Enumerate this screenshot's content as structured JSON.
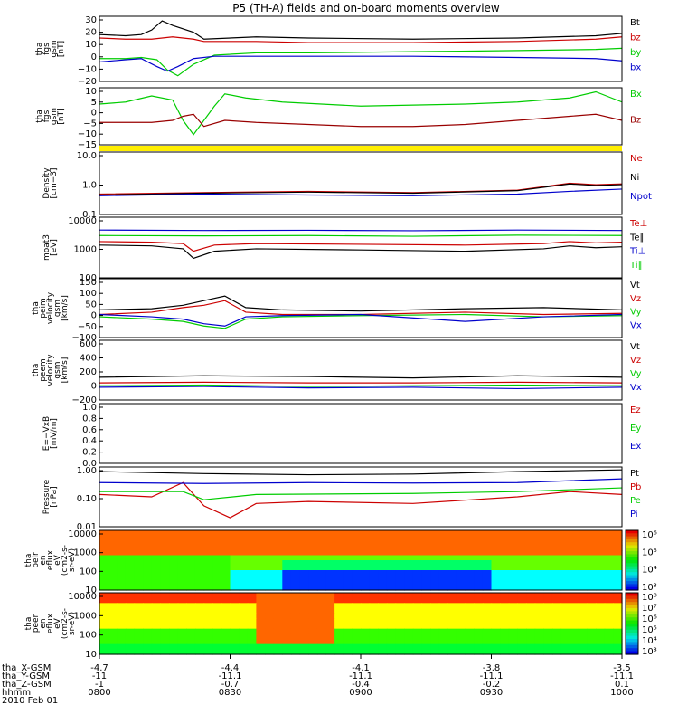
{
  "title": "P5 (TH-A) fields and on-board moments overview",
  "colors": {
    "black": "#000000",
    "red": "#cc0000",
    "green": "#00cc00",
    "blue": "#0000cc",
    "yellow": "#ffee00",
    "darkred": "#990000"
  },
  "chart_data": [
    {
      "id": "fgs_gsm",
      "type": "line",
      "ylabel": [
        "tha",
        "fgs",
        "gsm",
        "[nT]"
      ],
      "yticks": [
        "30",
        "20",
        "10",
        "0",
        "−10",
        "−20"
      ],
      "ylim": [
        -25,
        32
      ],
      "series": [
        {
          "name": "Bt",
          "color": "black",
          "x": [
            0,
            5,
            8,
            10,
            12,
            14,
            18,
            20,
            30,
            40,
            60,
            80,
            95,
            100
          ],
          "y": [
            16,
            15,
            16,
            20,
            28,
            24,
            18,
            12,
            14,
            13,
            12,
            13,
            15,
            17
          ]
        },
        {
          "name": "bz",
          "color": "red",
          "x": [
            0,
            5,
            10,
            14,
            18,
            20,
            30,
            40,
            60,
            80,
            95,
            100
          ],
          "y": [
            13,
            12,
            12,
            14,
            12,
            10,
            10,
            9,
            9,
            10,
            12,
            14
          ]
        },
        {
          "name": "by",
          "color": "green",
          "x": [
            0,
            5,
            8,
            11,
            13,
            15,
            18,
            22,
            30,
            40,
            60,
            80,
            95,
            100
          ],
          "y": [
            -5,
            -5,
            -4,
            -6,
            -15,
            -20,
            -10,
            -2,
            0,
            0,
            1,
            2,
            3,
            4
          ]
        },
        {
          "name": "bx",
          "color": "blue",
          "x": [
            0,
            5,
            8,
            11,
            13,
            15,
            18,
            22,
            30,
            40,
            60,
            80,
            95,
            100
          ],
          "y": [
            -8,
            -6,
            -5,
            -12,
            -16,
            -12,
            -5,
            -3,
            -3,
            -3,
            -3,
            -4,
            -5,
            -7
          ]
        }
      ]
    },
    {
      "id": "fgs_gsm2",
      "type": "line",
      "ylabel": [
        "tha",
        "fgs",
        "gsm",
        "[nT]"
      ],
      "yticks": [
        "10",
        "5",
        "0",
        "−5",
        "−10",
        "−15"
      ],
      "ylim": [
        -17,
        11
      ],
      "series": [
        {
          "name": "Bx",
          "color": "green",
          "x": [
            0,
            5,
            10,
            14,
            16,
            18,
            20,
            22,
            24,
            28,
            35,
            50,
            70,
            80,
            90,
            95,
            100
          ],
          "y": [
            3,
            4,
            7,
            5,
            -5,
            -12,
            -5,
            2,
            8,
            6,
            4,
            2,
            3,
            4,
            6,
            9,
            4
          ]
        },
        {
          "name": "Bz",
          "color": "darkred",
          "x": [
            0,
            5,
            10,
            14,
            16,
            18,
            20,
            24,
            30,
            40,
            50,
            60,
            70,
            80,
            90,
            95,
            100
          ],
          "y": [
            -6,
            -6,
            -6,
            -5,
            -3,
            -2,
            -8,
            -5,
            -6,
            -7,
            -8,
            -8,
            -7,
            -5,
            -3,
            -2,
            -5
          ]
        }
      ]
    },
    {
      "id": "density",
      "type": "line",
      "ylabel": [
        "Density",
        "[cm−3]"
      ],
      "yticks": [
        "10.0",
        "1.0",
        "0.1"
      ],
      "ylim": [
        0.1,
        10
      ],
      "log": true,
      "series": [
        {
          "name": "Ne",
          "color": "red",
          "x": [
            0,
            20,
            40,
            60,
            80,
            90,
            95,
            100
          ],
          "y": [
            0.45,
            0.5,
            0.55,
            0.5,
            0.6,
            1.0,
            0.9,
            0.95
          ]
        },
        {
          "name": "Ni",
          "color": "black",
          "x": [
            0,
            20,
            40,
            60,
            80,
            90,
            95,
            100
          ],
          "y": [
            0.42,
            0.48,
            0.52,
            0.48,
            0.58,
            0.95,
            0.85,
            0.9
          ]
        },
        {
          "name": "Npot",
          "color": "blue",
          "x": [
            0,
            20,
            40,
            60,
            80,
            90,
            100
          ],
          "y": [
            0.4,
            0.45,
            0.42,
            0.4,
            0.45,
            0.55,
            0.65
          ]
        }
      ]
    },
    {
      "id": "temp",
      "type": "line",
      "ylabel": [
        "moat3",
        "[eV]"
      ],
      "yticks": [
        "10000",
        "1000",
        "100"
      ],
      "ylim": [
        100,
        15000
      ],
      "log": true,
      "series": [
        {
          "name": "Te⊥",
          "color": "red",
          "x": [
            0,
            10,
            16,
            18,
            22,
            30,
            50,
            70,
            85,
            90,
            95,
            100
          ],
          "y": [
            2000,
            1900,
            1700,
            900,
            1500,
            1700,
            1600,
            1500,
            1700,
            2000,
            1800,
            1900
          ]
        },
        {
          "name": "Te∥",
          "color": "black",
          "x": [
            0,
            10,
            16,
            18,
            22,
            30,
            50,
            70,
            85,
            90,
            95,
            100
          ],
          "y": [
            1500,
            1400,
            1100,
            500,
            900,
            1100,
            1000,
            900,
            1100,
            1400,
            1200,
            1300
          ]
        },
        {
          "name": "Ti⊥",
          "color": "blue",
          "x": [
            0,
            20,
            40,
            60,
            80,
            100
          ],
          "y": [
            5200,
            5000,
            5100,
            4900,
            5200,
            5000
          ]
        },
        {
          "name": "Ti∥",
          "color": "green",
          "x": [
            0,
            20,
            40,
            60,
            80,
            100
          ],
          "y": [
            3300,
            3200,
            3300,
            3100,
            3400,
            3300
          ]
        }
      ]
    },
    {
      "id": "peim_vel",
      "type": "line",
      "ylabel": [
        "tha",
        "peim",
        "velocity",
        "gsm",
        "[km/s]"
      ],
      "yticks": [
        "150",
        "100",
        "50",
        "0",
        "−50",
        "−100"
      ],
      "ylim": [
        -100,
        155
      ],
      "series": [
        {
          "name": "Vt",
          "color": "black",
          "x": [
            0,
            10,
            16,
            20,
            24,
            28,
            35,
            50,
            70,
            85,
            100
          ],
          "y": [
            20,
            25,
            40,
            60,
            80,
            30,
            20,
            15,
            25,
            30,
            20
          ]
        },
        {
          "name": "Vz",
          "color": "red",
          "x": [
            0,
            10,
            16,
            20,
            24,
            28,
            35,
            50,
            70,
            85,
            100
          ],
          "y": [
            0,
            10,
            30,
            40,
            60,
            10,
            0,
            0,
            10,
            0,
            5
          ]
        },
        {
          "name": "Vy",
          "color": "green",
          "x": [
            0,
            10,
            16,
            20,
            24,
            28,
            35,
            50,
            70,
            85,
            100
          ],
          "y": [
            -10,
            -20,
            -30,
            -50,
            -60,
            -20,
            -10,
            -5,
            0,
            -10,
            -5
          ]
        },
        {
          "name": "Vx",
          "color": "blue",
          "x": [
            0,
            10,
            16,
            20,
            24,
            28,
            35,
            50,
            70,
            85,
            100
          ],
          "y": [
            0,
            -10,
            -20,
            -40,
            -50,
            -10,
            -5,
            0,
            -30,
            -10,
            0
          ]
        }
      ]
    },
    {
      "id": "peem_vel",
      "type": "line",
      "ylabel": [
        "tha",
        "peem",
        "velocity",
        "gsm",
        "[km/s]"
      ],
      "yticks": [
        "600",
        "400",
        "200",
        "0",
        "−200"
      ],
      "ylim": [
        -220,
        620
      ],
      "series": [
        {
          "name": "Vt",
          "color": "black",
          "x": [
            0,
            20,
            40,
            60,
            80,
            100
          ],
          "y": [
            100,
            120,
            110,
            90,
            120,
            100
          ]
        },
        {
          "name": "Vz",
          "color": "red",
          "x": [
            0,
            20,
            40,
            60,
            80,
            100
          ],
          "y": [
            20,
            30,
            20,
            20,
            30,
            20
          ]
        },
        {
          "name": "Vy",
          "color": "green",
          "x": [
            0,
            20,
            40,
            60,
            80,
            100
          ],
          "y": [
            -20,
            -10,
            -30,
            -20,
            -10,
            -20
          ]
        },
        {
          "name": "Vx",
          "color": "blue",
          "x": [
            0,
            20,
            40,
            60,
            80,
            100
          ],
          "y": [
            -40,
            -30,
            -50,
            -40,
            -60,
            -40
          ]
        }
      ]
    },
    {
      "id": "efield",
      "type": "line",
      "ylabel": [
        "E=−VxB",
        "[mV/m]"
      ],
      "yticks": [
        "1.0",
        "0.8",
        "0.6",
        "0.4",
        "0.2",
        "0.0"
      ],
      "ylim": [
        0,
        1
      ],
      "series": [
        {
          "name": "Ez",
          "color": "red",
          "x": [],
          "y": []
        },
        {
          "name": "Ey",
          "color": "green",
          "x": [],
          "y": []
        },
        {
          "name": "Ex",
          "color": "blue",
          "x": [],
          "y": []
        }
      ]
    },
    {
      "id": "pressure",
      "type": "line",
      "ylabel": [
        "Pressure",
        "[nPa]"
      ],
      "yticks": [
        "1.00",
        "0.10",
        "0.01"
      ],
      "ylim": [
        0.01,
        1.0
      ],
      "log": true,
      "series": [
        {
          "name": "Pt",
          "color": "black",
          "x": [
            0,
            20,
            40,
            60,
            80,
            100
          ],
          "y": [
            0.7,
            0.6,
            0.55,
            0.58,
            0.7,
            0.8
          ]
        },
        {
          "name": "Pb",
          "color": "red",
          "x": [
            0,
            10,
            16,
            20,
            25,
            30,
            40,
            60,
            80,
            90,
            100
          ],
          "y": [
            0.12,
            0.1,
            0.3,
            0.05,
            0.02,
            0.06,
            0.07,
            0.06,
            0.1,
            0.15,
            0.12
          ]
        },
        {
          "name": "Pe",
          "color": "green",
          "x": [
            0,
            16,
            20,
            30,
            60,
            80,
            100
          ],
          "y": [
            0.15,
            0.15,
            0.08,
            0.12,
            0.13,
            0.15,
            0.2
          ]
        },
        {
          "name": "Pi",
          "color": "blue",
          "x": [
            0,
            20,
            40,
            60,
            80,
            100
          ],
          "y": [
            0.3,
            0.28,
            0.3,
            0.29,
            0.3,
            0.4
          ]
        }
      ]
    },
    {
      "id": "peir",
      "type": "heatmap",
      "ylabel": [
        "tha",
        "peir",
        "en",
        "eflux",
        "eV",
        "(cm2-s-",
        "sr-eV)"
      ],
      "yticks": [
        "10000",
        "1000",
        "100",
        "10"
      ],
      "ylim": [
        10,
        20000
      ],
      "log": true,
      "colorbar_labels": [
        "10⁶",
        "10⁵",
        "10⁴",
        "10³"
      ]
    },
    {
      "id": "peer",
      "type": "heatmap",
      "ylabel": [
        "tha",
        "peer",
        "en",
        "eflux",
        "eV",
        "(cm2-s-",
        "sr-eV)"
      ],
      "yticks": [
        "10000",
        "1000",
        "100",
        "10"
      ],
      "ylim": [
        10,
        20000
      ],
      "log": true,
      "colorbar_labels": [
        "10⁸",
        "10⁷",
        "10⁶",
        "10⁵",
        "10⁴",
        "10³"
      ]
    }
  ],
  "xaxis": {
    "row_labels": [
      "tha_X-GSM",
      "tha_Y-GSM",
      "tha_Z-GSM",
      "hhmm",
      "2010 Feb 01"
    ],
    "ticks": [
      {
        "x": -4.7,
        "y": -11.0,
        "z": -1.0,
        "t": "0800"
      },
      {
        "x": -4.4,
        "y": -11.1,
        "z": -0.7,
        "t": "0830"
      },
      {
        "x": -4.1,
        "y": -11.1,
        "z": -0.4,
        "t": "0900"
      },
      {
        "x": -3.8,
        "y": -11.1,
        "z": -0.2,
        "t": "0930"
      },
      {
        "x": -3.5,
        "y": -11.1,
        "z": 0.1,
        "t": "1000"
      }
    ]
  }
}
